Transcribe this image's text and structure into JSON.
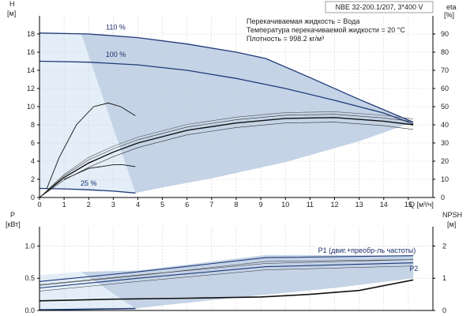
{
  "chart_data": [
    {
      "type": "line",
      "title": "NBE 32-200.1/207, 3*400 V",
      "info": [
        "Перекачиваемая жидкость = Вода",
        "Температура перекачиваемой жидкости = 20 °C",
        "Плотность = 998.2 кг/м³"
      ],
      "xlabel": "Q [м³/ч]",
      "xlim": [
        0,
        16
      ],
      "xticks": [
        "0",
        "1",
        "2",
        "3",
        "4",
        "5",
        "6",
        "7",
        "8",
        "9",
        "10",
        "11",
        "12",
        "13",
        "14",
        "15"
      ],
      "ylabel": "H",
      "ylabel_unit": "[м]",
      "ylim": [
        0,
        20
      ],
      "yticks": [
        "0",
        "2",
        "4",
        "6",
        "8",
        "10",
        "12",
        "14",
        "16",
        "18"
      ],
      "y2label": "eta",
      "y2label_unit": "[%]",
      "y2lim": [
        0,
        100
      ],
      "y2ticks": [
        "0",
        "10",
        "20",
        "30",
        "40",
        "50",
        "60",
        "70",
        "80",
        "90"
      ],
      "grid": true,
      "series": [
        {
          "name": "110 %",
          "axis": "left",
          "x": [
            0,
            2,
            4,
            6,
            8,
            9.2,
            11,
            13,
            15.2
          ],
          "y": [
            18.1,
            18.0,
            17.6,
            16.9,
            16.0,
            15.3,
            13.2,
            10.8,
            8.3
          ]
        },
        {
          "name": "100 %",
          "axis": "left",
          "x": [
            0,
            2,
            4,
            6,
            8,
            10,
            12,
            14,
            15.2
          ],
          "y": [
            15.0,
            14.9,
            14.6,
            14.0,
            13.1,
            12.0,
            10.7,
            9.3,
            8.1
          ]
        },
        {
          "name": "25 %",
          "axis": "left",
          "x": [
            0,
            1,
            2,
            3,
            3.9
          ],
          "y": [
            1.0,
            0.95,
            0.85,
            0.7,
            0.5
          ]
        },
        {
          "name": "",
          "axis": "right",
          "x": [
            0,
            1,
            2,
            3,
            4,
            6,
            8,
            10,
            12,
            14,
            15.2
          ],
          "y": [
            0,
            11,
            19,
            25,
            30,
            37,
            41,
            43.5,
            44,
            42,
            40
          ]
        },
        {
          "name": "",
          "axis": "right",
          "x": [
            0.3,
            0.8,
            1.5,
            2.2,
            2.8,
            3.3,
            3.9
          ],
          "y": [
            5,
            22,
            40,
            50,
            52,
            50,
            45
          ]
        },
        {
          "name": "",
          "axis": "right",
          "x": [
            1,
            2,
            3,
            3.4,
            3.9
          ],
          "y": [
            10,
            16,
            18,
            18,
            17
          ]
        }
      ]
    },
    {
      "type": "line",
      "title": "",
      "xlim": [
        0,
        16
      ],
      "ylabel": "P",
      "ylabel_unit": "[кВт]",
      "ylim": [
        0,
        1.3
      ],
      "yticks": [
        "0.0",
        "0.5",
        "1.0"
      ],
      "y2label": "NPSH",
      "y2label_unit": "[м]",
      "y2lim": [
        0,
        2.6
      ],
      "y2ticks": [
        "0",
        "1",
        "2"
      ],
      "grid": true,
      "series": [
        {
          "name": "P1 (двиг.+преобр-ль частоты)",
          "axis": "left",
          "x": [
            0,
            4,
            9.2,
            15.2
          ],
          "y": [
            0.45,
            0.6,
            0.82,
            0.85
          ]
        },
        {
          "name": "P2",
          "axis": "left",
          "x": [
            0,
            4,
            9.2,
            15.2
          ],
          "y": [
            0.35,
            0.5,
            0.68,
            0.74
          ]
        },
        {
          "name": "",
          "axis": "right",
          "x": [
            0,
            3,
            6,
            9,
            11,
            13,
            15.2
          ],
          "y": [
            0.3,
            0.35,
            0.38,
            0.42,
            0.5,
            0.62,
            0.95
          ]
        },
        {
          "name": "",
          "axis": "left",
          "x": [
            0,
            3.9
          ],
          "y": [
            0.01,
            0.03
          ]
        }
      ]
    }
  ]
}
